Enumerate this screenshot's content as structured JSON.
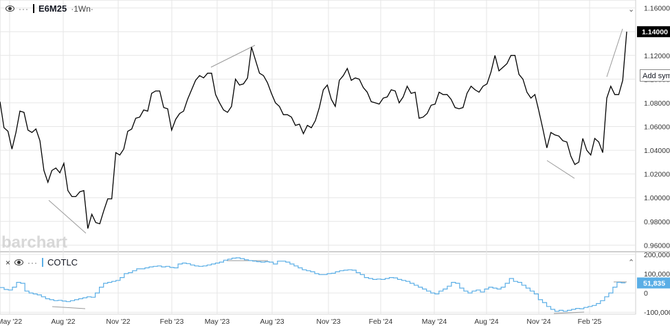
{
  "main_legend": {
    "symbol": "E6M25",
    "interval": "·1Wn·",
    "dots": "···",
    "eye_icon": "eye-icon"
  },
  "sub_legend": {
    "close": "×",
    "dots": "···",
    "name": "COTLC",
    "eye_icon": "eye-icon"
  },
  "add_symbol_label": "Add symbol",
  "watermark": "barchart",
  "price_badge": "1.14000",
  "cot_badge": "51,835",
  "colors": {
    "price_line": "#000000",
    "cot_line": "#5aaee6",
    "badge_bg": "#000000",
    "cot_badge_bg": "#5aaee6",
    "grid": "#e6e6e6",
    "trend": "#999999"
  },
  "chart_data": [
    {
      "type": "line",
      "title": "E6M25",
      "interval": "1W",
      "x_ticks": [
        "May '22",
        "Aug '22",
        "Nov '22",
        "Feb '23",
        "May '23",
        "Aug '23",
        "Nov '23",
        "Feb '24",
        "May '24",
        "Aug '24",
        "Nov '24",
        "Feb '25"
      ],
      "y_ticks": [
        "1.16000",
        "1.14000",
        "1.12000",
        "1.10000",
        "1.08000",
        "1.06000",
        "1.04000",
        "1.02000",
        "1.00000",
        "0.98000",
        "0.96000"
      ],
      "ylim": [
        0.955,
        1.165
      ],
      "last_value": 1.14,
      "series": [
        {
          "values": [
            1.081,
            1.059,
            1.056,
            1.041,
            1.055,
            1.073,
            1.072,
            1.057,
            1.055,
            1.058,
            1.048,
            1.023,
            1.013,
            1.023,
            1.025,
            1.021,
            1.029,
            1.006,
            1.001,
            1.001,
            1.005,
            1.006,
            0.974,
            0.986,
            0.979,
            0.978,
            0.989,
            0.999,
            0.999,
            1.038,
            1.036,
            1.041,
            1.056,
            1.058,
            1.067,
            1.068,
            1.074,
            1.073,
            1.088,
            1.09,
            1.09,
            1.076,
            1.075,
            1.057,
            1.066,
            1.071,
            1.073,
            1.083,
            1.091,
            1.099,
            1.103,
            1.101,
            1.105,
            1.105,
            1.087,
            1.08,
            1.074,
            1.072,
            1.077,
            1.1,
            1.095,
            1.096,
            1.101,
            1.127,
            1.116,
            1.105,
            1.103,
            1.097,
            1.088,
            1.08,
            1.077,
            1.07,
            1.07,
            1.068,
            1.061,
            1.062,
            1.054,
            1.061,
            1.059,
            1.065,
            1.076,
            1.091,
            1.095,
            1.083,
            1.077,
            1.099,
            1.103,
            1.109,
            1.099,
            1.101,
            1.1,
            1.093,
            1.089,
            1.081,
            1.08,
            1.079,
            1.084,
            1.085,
            1.091,
            1.09,
            1.08,
            1.085,
            1.094,
            1.088,
            1.089,
            1.067,
            1.068,
            1.071,
            1.078,
            1.079,
            1.089,
            1.087,
            1.087,
            1.083,
            1.076,
            1.075,
            1.076,
            1.088,
            1.094,
            1.091,
            1.089,
            1.094,
            1.096,
            1.106,
            1.12,
            1.107,
            1.11,
            1.113,
            1.12,
            1.12,
            1.104,
            1.1,
            1.089,
            1.084,
            1.087,
            1.073,
            1.058,
            1.042,
            1.055,
            1.053,
            1.052,
            1.048,
            1.047,
            1.035,
            1.028,
            1.03,
            1.05,
            1.04,
            1.036,
            1.05,
            1.047,
            1.038,
            1.084,
            1.094,
            1.087,
            1.087,
            1.099,
            1.14
          ]
        },
        {
          "name": "trendline-1",
          "values": []
        }
      ],
      "trendlines": [
        {
          "from": [
            "Apr '22 (approx)",
            1.0
          ],
          "to": [
            "Sep '22 (approx)",
            0.973
          ]
        },
        {
          "from": [
            "May '23 (approx)",
            1.112
          ],
          "to": [
            "Jul '23 (approx)",
            1.131
          ]
        },
        {
          "from": [
            "Oct '24 (approx)",
            1.034
          ],
          "to": [
            "Dec '24 (approx)",
            1.019
          ]
        },
        {
          "from": [
            "Feb '25 (approx)",
            1.104
          ],
          "to": [
            "Mar '25 (approx)",
            1.146
          ]
        }
      ]
    },
    {
      "type": "line",
      "title": "COTLC",
      "step": true,
      "y_ticks": [
        "200,000",
        "100,000",
        "0",
        "-100,000"
      ],
      "ylim": [
        -110000,
        210000
      ],
      "last_value": 51835,
      "series": [
        {
          "name": "COTLC",
          "values": [
            28000,
            18000,
            15000,
            30000,
            55000,
            50000,
            10000,
            0,
            -5000,
            -10000,
            -20000,
            -30000,
            -35000,
            -40000,
            -38000,
            -42000,
            -45000,
            -40000,
            -35000,
            -30000,
            -25000,
            -20000,
            -22000,
            0,
            30000,
            50000,
            55000,
            60000,
            65000,
            80000,
            100000,
            105000,
            115000,
            125000,
            125000,
            130000,
            135000,
            138000,
            140000,
            135000,
            138000,
            132000,
            130000,
            150000,
            155000,
            152000,
            145000,
            140000,
            138000,
            140000,
            145000,
            150000,
            155000,
            160000,
            170000,
            175000,
            180000,
            182000,
            178000,
            172000,
            168000,
            165000,
            162000,
            160000,
            162000,
            160000,
            150000,
            165000,
            165000,
            160000,
            150000,
            140000,
            130000,
            120000,
            115000,
            110000,
            100000,
            95000,
            95000,
            100000,
            102000,
            110000,
            115000,
            118000,
            120000,
            118000,
            105000,
            95000,
            80000,
            75000,
            70000,
            72000,
            70000,
            75000,
            80000,
            78000,
            70000,
            65000,
            60000,
            50000,
            40000,
            30000,
            20000,
            10000,
            0,
            -5000,
            10000,
            20000,
            35000,
            55000,
            50000,
            25000,
            10000,
            0,
            10000,
            15000,
            5000,
            20000,
            30000,
            25000,
            20000,
            30000,
            50000,
            75000,
            60000,
            55000,
            40000,
            25000,
            10000,
            -5000,
            -35000,
            -50000,
            -70000,
            -85000,
            -95000,
            -90000,
            -95000,
            -90000,
            -85000,
            -80000,
            -82000,
            -75000,
            -70000,
            -65000,
            -55000,
            -40000,
            -20000,
            0,
            30000,
            55000,
            52000,
            51835
          ]
        }
      ],
      "trendlines": [
        {
          "from": [
            "Aug '22 (approx)",
            -45000
          ],
          "to": [
            "Oct '22 (approx)",
            -50000
          ]
        },
        {
          "from": [
            "May '23 (approx)",
            185000
          ],
          "to": [
            "Aug '23 (approx)",
            183000
          ]
        },
        {
          "from": [
            "Nov '24 (approx)",
            -95000
          ],
          "to": [
            "Feb '25 (approx)",
            -90000
          ]
        },
        {
          "from": [
            "Feb '25 (approx)",
            60000
          ],
          "to": [
            "Mar '25 (approx)",
            62000
          ]
        }
      ]
    }
  ]
}
